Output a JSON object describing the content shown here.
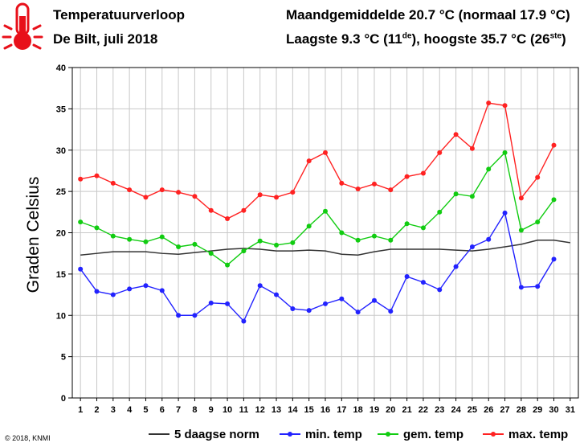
{
  "header": {
    "title": "Temperatuurverloop",
    "subtitle": "De Bilt, juli 2018",
    "monthly_average": "Maandgemiddelde 20.7 °C (normaal 17.9 °C)",
    "extremes_prefix": "Laagste 9.3 °C (11",
    "extremes_sup1": "de",
    "extremes_middle": "), hoogste 35.7 °C (26",
    "extremes_sup2": "ste",
    "extremes_suffix": ")"
  },
  "footer": {
    "copyright": "© 2018, KNMI"
  },
  "icons": {
    "thermometer": "thermometer-icon"
  },
  "chart_data": {
    "type": "line",
    "ylabel": "Graden Celsius",
    "xlabel": "",
    "ylim": [
      0,
      40
    ],
    "yticks": [
      0,
      5,
      10,
      15,
      20,
      25,
      30,
      35,
      40
    ],
    "xlim": [
      0.5,
      31.5
    ],
    "x": [
      1,
      2,
      3,
      4,
      5,
      6,
      7,
      8,
      9,
      10,
      11,
      12,
      13,
      14,
      15,
      16,
      17,
      18,
      19,
      20,
      21,
      22,
      23,
      24,
      25,
      26,
      27,
      28,
      29,
      30,
      31
    ],
    "grid": true,
    "legend_position": "bottom",
    "series": [
      {
        "name": "5 daagse norm",
        "color": "#333333",
        "markers": false,
        "x": [
          1,
          2,
          3,
          4,
          5,
          6,
          7,
          8,
          9,
          10,
          11,
          12,
          13,
          14,
          15,
          16,
          17,
          18,
          19,
          20,
          21,
          22,
          23,
          24,
          25,
          26,
          27,
          28,
          29,
          30,
          31
        ],
        "values": [
          17.3,
          17.5,
          17.7,
          17.7,
          17.7,
          17.5,
          17.4,
          17.6,
          17.8,
          18.0,
          18.1,
          18.0,
          17.8,
          17.8,
          17.9,
          17.8,
          17.4,
          17.3,
          17.7,
          18.0,
          18.0,
          18.0,
          18.0,
          17.9,
          17.8,
          18.0,
          18.3,
          18.6,
          19.1,
          19.1,
          18.8
        ]
      },
      {
        "name": "min. temp",
        "color": "#2222ff",
        "markers": true,
        "x": [
          1,
          2,
          3,
          4,
          5,
          6,
          7,
          8,
          9,
          10,
          11,
          12,
          13,
          14,
          15,
          16,
          17,
          18,
          19,
          20,
          21,
          22,
          23,
          24,
          25,
          26,
          27,
          28,
          29,
          30
        ],
        "values": [
          15.6,
          12.9,
          12.5,
          13.2,
          13.6,
          13.0,
          10.0,
          10.0,
          11.5,
          11.4,
          9.3,
          13.6,
          12.5,
          10.8,
          10.6,
          11.4,
          12.0,
          10.4,
          11.8,
          10.5,
          14.7,
          14.0,
          13.1,
          15.9,
          18.3,
          19.2,
          22.4,
          13.4,
          13.5,
          16.8
        ]
      },
      {
        "name": "gem. temp",
        "color": "#11cc11",
        "markers": true,
        "x": [
          1,
          2,
          3,
          4,
          5,
          6,
          7,
          8,
          9,
          10,
          11,
          12,
          13,
          14,
          15,
          16,
          17,
          18,
          19,
          20,
          21,
          22,
          23,
          24,
          25,
          26,
          27,
          28,
          29,
          30
        ],
        "values": [
          21.3,
          20.6,
          19.6,
          19.2,
          18.9,
          19.5,
          18.3,
          18.6,
          17.5,
          16.1,
          17.8,
          19.0,
          18.5,
          18.8,
          20.8,
          22.6,
          20.0,
          19.1,
          19.6,
          19.1,
          21.1,
          20.6,
          22.5,
          24.7,
          24.4,
          27.7,
          29.7,
          20.3,
          21.3,
          24.0
        ]
      },
      {
        "name": "max. temp",
        "color": "#ff2222",
        "markers": true,
        "x": [
          1,
          2,
          3,
          4,
          5,
          6,
          7,
          8,
          9,
          10,
          11,
          12,
          13,
          14,
          15,
          16,
          17,
          18,
          19,
          20,
          21,
          22,
          23,
          24,
          25,
          26,
          27,
          28,
          29,
          30
        ],
        "values": [
          26.5,
          26.9,
          26.0,
          25.2,
          24.3,
          25.2,
          24.9,
          24.4,
          22.7,
          21.7,
          22.7,
          24.6,
          24.3,
          24.9,
          28.7,
          29.7,
          26.0,
          25.3,
          25.9,
          25.2,
          26.8,
          27.2,
          29.7,
          31.9,
          30.2,
          35.7,
          35.4,
          24.2,
          26.7,
          30.6
        ]
      }
    ]
  }
}
